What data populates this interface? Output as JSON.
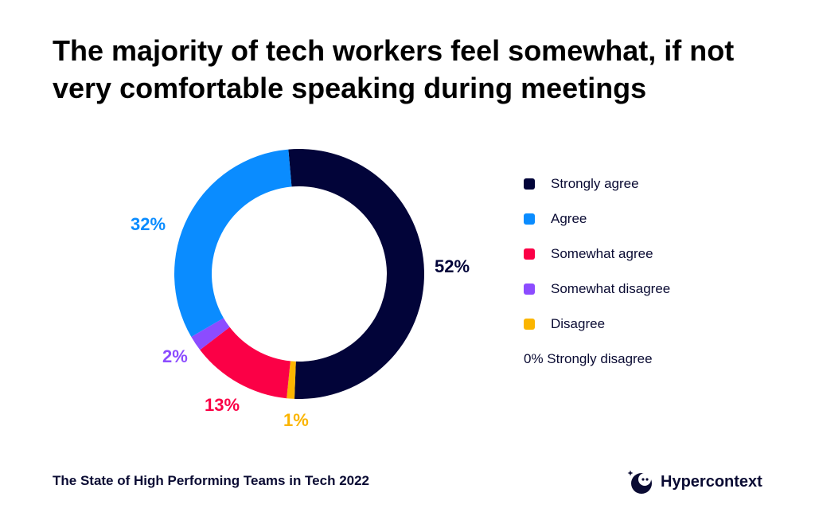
{
  "chart_data": {
    "type": "pie",
    "variant": "donut",
    "title": "The majority of tech workers feel somewhat, if not very comfortable speaking during meetings",
    "categories": [
      "Strongly agree",
      "Disagree",
      "Somewhat agree",
      "Somewhat disagree",
      "Agree"
    ],
    "values": [
      52,
      1,
      13,
      2,
      32
    ],
    "value_labels": [
      "52%",
      "1%",
      "13%",
      "2%",
      "32%"
    ],
    "colors": [
      "#020439",
      "#fbb500",
      "#fb0046",
      "#8c4cff",
      "#0a8cff"
    ],
    "legend_position": "right",
    "legend": [
      {
        "label": "Strongly agree",
        "color": "#020439"
      },
      {
        "label": "Agree",
        "color": "#0a8cff"
      },
      {
        "label": "Somewhat agree",
        "color": "#fb0046"
      },
      {
        "label": "Somewhat disagree",
        "color": "#8c4cff"
      },
      {
        "label": "Disagree",
        "color": "#fbb500"
      }
    ],
    "legend_note": "0% Strongly disagree"
  },
  "footer": {
    "source": "The State of High Performing Teams in Tech 2022",
    "brand": "Hypercontext",
    "brand_logo_icon": "hypercontext-logo-icon"
  }
}
